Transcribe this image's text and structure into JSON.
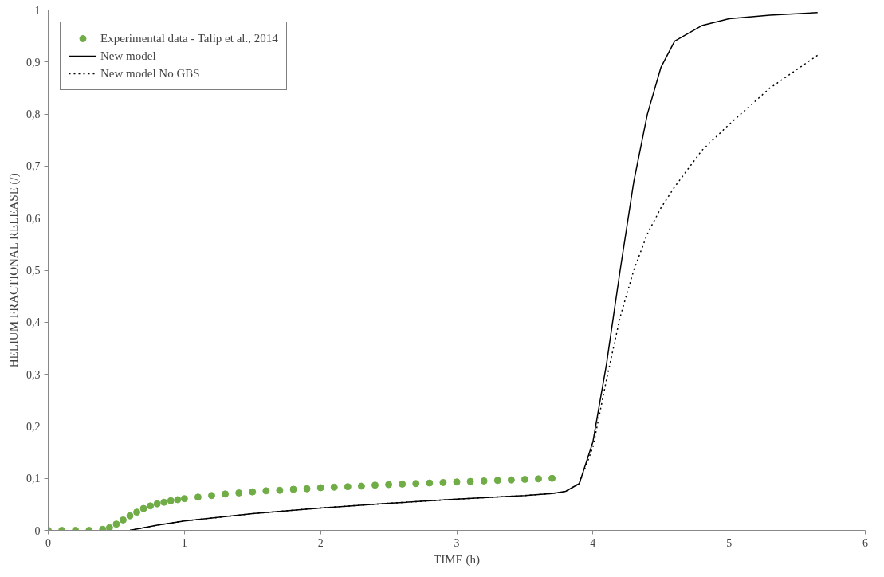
{
  "chart_data": {
    "type": "line",
    "xlabel": "TIME (h)",
    "ylabel": "HELIUM FRACTIONAL RELEASE (/)",
    "xlim": [
      0,
      6
    ],
    "ylim": [
      0,
      1
    ],
    "xticks": [
      0,
      1,
      2,
      3,
      4,
      5,
      6
    ],
    "yticks": [
      0,
      {
        "value": 0.1,
        "label": "0,1"
      },
      {
        "value": 0.2,
        "label": "0,2"
      },
      {
        "value": 0.3,
        "label": "0,3"
      },
      {
        "value": 0.4,
        "label": "0,4"
      },
      {
        "value": 0.5,
        "label": "0,5"
      },
      {
        "value": 0.6,
        "label": "0,6"
      },
      {
        "value": 0.7,
        "label": "0,7"
      },
      {
        "value": 0.8,
        "label": "0,8"
      },
      {
        "value": 0.9,
        "label": "0,9"
      },
      1
    ],
    "grid": false,
    "legend": "top left",
    "series": [
      {
        "name": "Experimental data - Talip et al., 2014",
        "type": "scatter",
        "marker": "circle",
        "color": "#70ad47",
        "x": [
          0,
          0.1,
          0.2,
          0.3,
          0.4,
          0.45,
          0.5,
          0.55,
          0.6,
          0.65,
          0.7,
          0.75,
          0.8,
          0.85,
          0.9,
          0.95,
          1.0,
          1.1,
          1.2,
          1.3,
          1.4,
          1.5,
          1.6,
          1.7,
          1.8,
          1.9,
          2.0,
          2.1,
          2.2,
          2.3,
          2.4,
          2.5,
          2.6,
          2.7,
          2.8,
          2.9,
          3.0,
          3.1,
          3.2,
          3.3,
          3.4,
          3.5,
          3.6,
          3.7
        ],
        "values": [
          0,
          0,
          0,
          0,
          0.002,
          0.005,
          0.012,
          0.02,
          0.028,
          0.035,
          0.042,
          0.047,
          0.051,
          0.054,
          0.057,
          0.059,
          0.061,
          0.064,
          0.067,
          0.07,
          0.072,
          0.074,
          0.076,
          0.077,
          0.079,
          0.08,
          0.082,
          0.083,
          0.084,
          0.085,
          0.087,
          0.088,
          0.089,
          0.09,
          0.091,
          0.092,
          0.093,
          0.094,
          0.095,
          0.096,
          0.097,
          0.098,
          0.099,
          0.1
        ]
      },
      {
        "name": "New model",
        "color": "#000000",
        "line_style": "solid",
        "x": [
          0.6,
          0.8,
          1.0,
          1.5,
          2.0,
          2.5,
          3.0,
          3.5,
          3.7,
          3.8,
          3.9,
          4.0,
          4.1,
          4.2,
          4.3,
          4.4,
          4.5,
          4.6,
          4.8,
          5.0,
          5.3,
          5.65
        ],
        "values": [
          0,
          0.01,
          0.018,
          0.032,
          0.043,
          0.052,
          0.06,
          0.067,
          0.071,
          0.075,
          0.09,
          0.17,
          0.32,
          0.5,
          0.67,
          0.8,
          0.89,
          0.94,
          0.97,
          0.983,
          0.99,
          0.995
        ]
      },
      {
        "name": "New model No GBS",
        "color": "#000000",
        "line_style": "dotted",
        "x": [
          0.6,
          0.8,
          1.0,
          1.5,
          2.0,
          2.5,
          3.0,
          3.5,
          3.7,
          3.8,
          3.9,
          4.0,
          4.1,
          4.2,
          4.3,
          4.4,
          4.5,
          4.6,
          4.8,
          5.0,
          5.3,
          5.65
        ],
        "values": [
          0,
          0.01,
          0.018,
          0.032,
          0.043,
          0.052,
          0.06,
          0.067,
          0.071,
          0.075,
          0.09,
          0.16,
          0.29,
          0.41,
          0.5,
          0.57,
          0.62,
          0.66,
          0.73,
          0.78,
          0.85,
          0.913
        ]
      }
    ]
  }
}
